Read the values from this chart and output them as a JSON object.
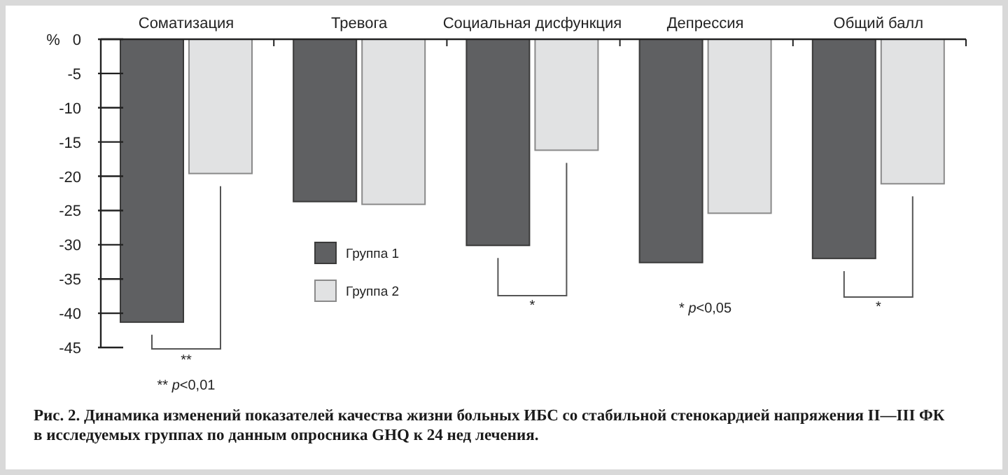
{
  "chart_data": {
    "type": "bar",
    "categories": [
      "Соматизация",
      "Тревога",
      "Социальная дисфункция",
      "Депрессия",
      "Общий балл"
    ],
    "series": [
      {
        "name": "Группа 1",
        "color": "#5f6062",
        "values": [
          -41.3,
          -23.7,
          -30.1,
          -32.6,
          -32.0
        ]
      },
      {
        "name": "Группа 2",
        "color": "#e1e2e3",
        "values": [
          -19.6,
          -24.1,
          -16.2,
          -25.4,
          -21.1
        ]
      }
    ],
    "ylabel": "%",
    "ylim": [
      -45,
      0
    ],
    "yticks": [
      0,
      -5,
      -10,
      -15,
      -20,
      -25,
      -30,
      -35,
      -40,
      -45
    ],
    "legend": "bottom left",
    "grid": false,
    "annotations": [
      "**",
      "** p<0,01",
      "*",
      "* p<0,05",
      "*",
      "Рис. 2. Динамика изменений показателей качества жизни больных ИБС со стабильной стенокардией напряжения II—III ФК\nв исследуемых группах  по данным опросника GHQ к 24 нед лечения."
    ]
  }
}
